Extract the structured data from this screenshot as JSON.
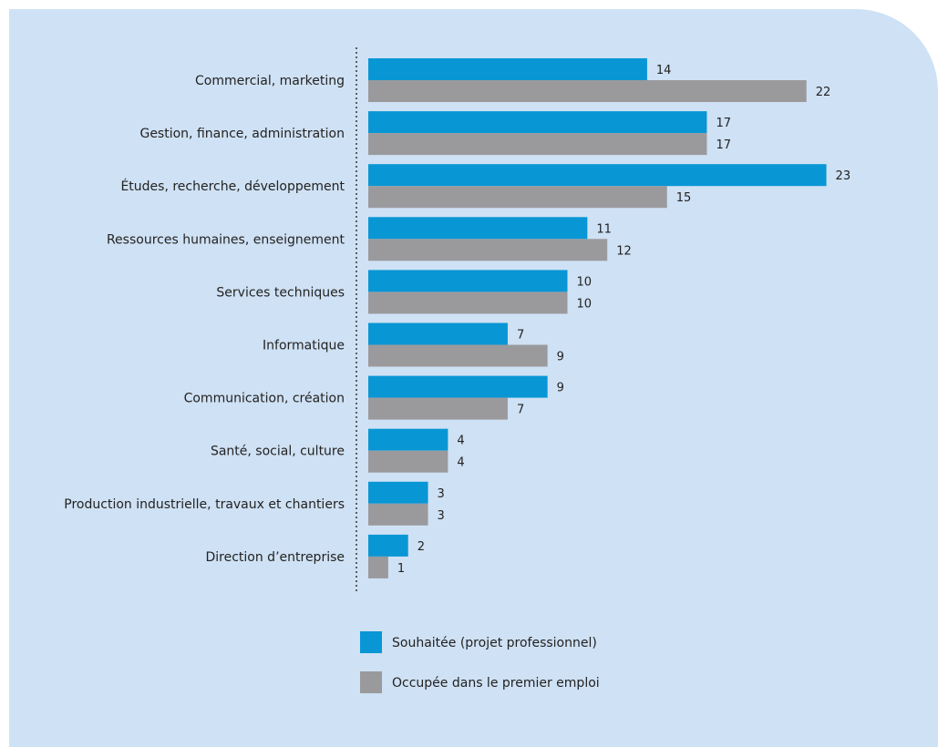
{
  "colors": {
    "background": "#cfe1f4",
    "series_wished": "#0996d5",
    "series_occupied": "#9a9a9d",
    "axis": "#333333"
  },
  "chart_data": {
    "type": "bar",
    "orientation": "horizontal",
    "categories": [
      "Commercial, marketing",
      "Gestion, finance, administration",
      "Études, recherche, développement",
      "Ressources humaines, enseignement",
      "Services techniques",
      "Informatique",
      "Communication, création",
      "Santé, social, culture",
      "Production industrielle, travaux et chantiers",
      "Direction d’entreprise"
    ],
    "series": [
      {
        "name": "Souhaitée (projet professionnel)",
        "values": [
          14,
          17,
          23,
          11,
          10,
          7,
          9,
          4,
          3,
          2
        ]
      },
      {
        "name": "Occupée dans le premier emploi",
        "values": [
          22,
          17,
          15,
          12,
          10,
          9,
          7,
          4,
          3,
          1
        ]
      }
    ],
    "xlim": [
      0,
      23
    ],
    "grid": false,
    "legend_position": "bottom"
  }
}
